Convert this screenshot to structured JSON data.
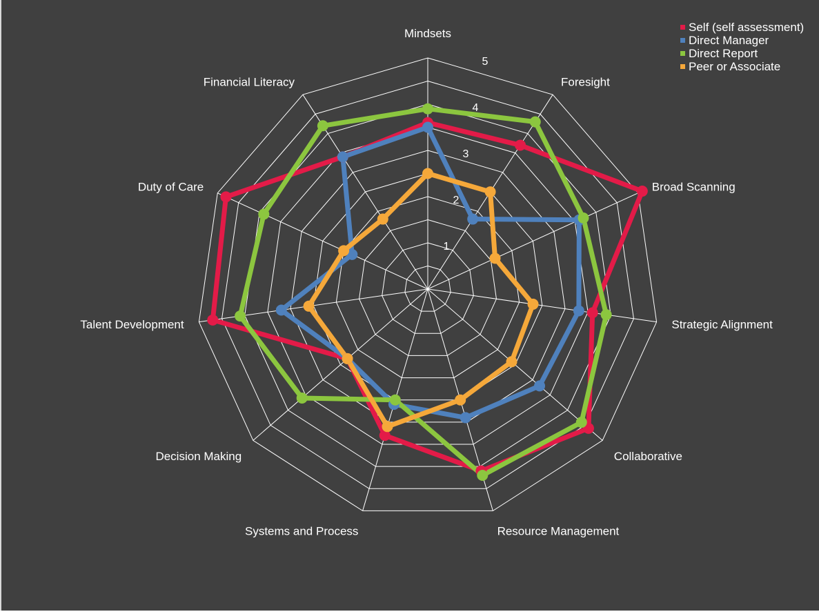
{
  "chart_data": {
    "type": "radar",
    "axes": [
      "Mindsets",
      "Foresight",
      "Broad Scanning",
      "Strategic Alignment",
      "Collaborative",
      "Resource Management",
      "Systems and Process",
      "Decision Making",
      "Talent Development",
      "Duty of Care",
      "Financial Literacy"
    ],
    "rlim": [
      0,
      5
    ],
    "ticks": [
      "1",
      "2",
      "3",
      "4",
      "5"
    ],
    "legend_position": "top-right",
    "series": [
      {
        "name": "Self (self assessment)",
        "color": "#e31b48",
        "values": [
          3.6,
          3.7,
          5.1,
          3.6,
          4.6,
          4.1,
          3.3,
          2.3,
          4.7,
          4.8,
          3.4
        ]
      },
      {
        "name": "Direct Manager",
        "color": "#4f81bd",
        "values": [
          3.5,
          1.8,
          3.6,
          3.3,
          3.2,
          2.9,
          2.6,
          2.3,
          3.2,
          1.8,
          3.4
        ]
      },
      {
        "name": "Direct Report",
        "color": "#8cc63f",
        "values": [
          3.9,
          4.3,
          3.7,
          3.9,
          4.4,
          4.2,
          2.5,
          3.6,
          4.1,
          3.9,
          4.2
        ]
      },
      {
        "name": "Peer or Associate",
        "color": "#f5a83a",
        "values": [
          2.5,
          2.5,
          1.6,
          2.3,
          2.4,
          2.5,
          3.1,
          2.3,
          2.6,
          2.0,
          1.8
        ]
      }
    ]
  }
}
